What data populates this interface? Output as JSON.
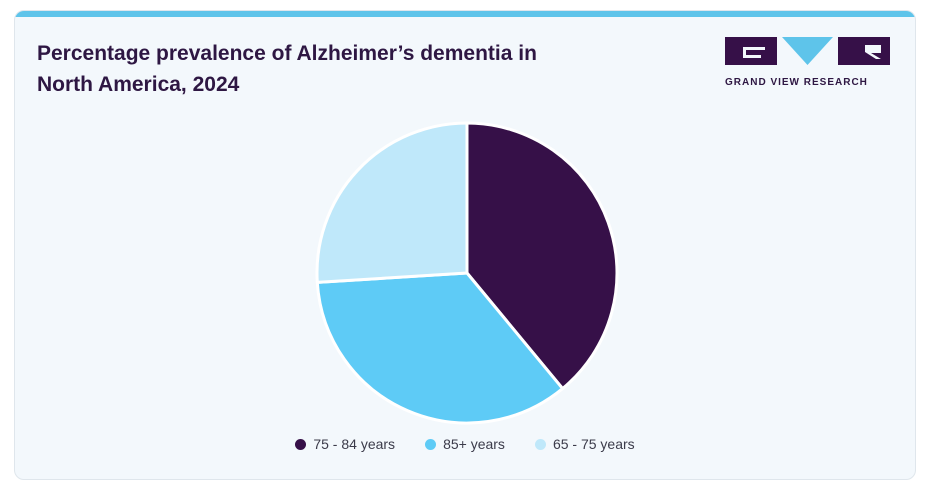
{
  "brand": {
    "name": "GRAND VIEW RESEARCH"
  },
  "colors": {
    "accent_bar": "#5ec4ea",
    "background": "#f3f8fc",
    "title": "#2e1743"
  },
  "chart_data": {
    "type": "pie",
    "title": "Percentage prevalence of Alzheimer’s dementia in North America, 2024",
    "categories": [
      "75 - 84 years",
      "85+ years",
      "65 - 75 years"
    ],
    "values": [
      39,
      35,
      26
    ],
    "colors": [
      "#361048",
      "#5ecbf6",
      "#bfe8fa"
    ],
    "legend_position": "bottom-center"
  }
}
